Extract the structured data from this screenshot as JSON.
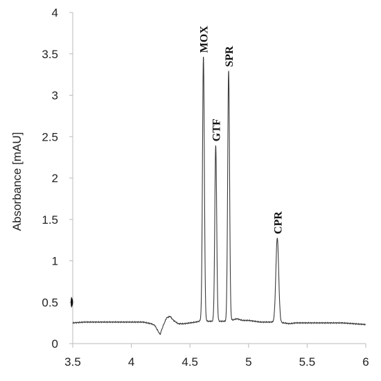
{
  "chart_data": {
    "type": "line",
    "title": "",
    "xlabel": "",
    "ylabel": "Absorbance [mAU]",
    "xlim": [
      3.5,
      6
    ],
    "ylim": [
      0,
      4
    ],
    "x_ticks": [
      "3.5",
      "4",
      "4.5",
      "5",
      "5.5",
      "6"
    ],
    "y_ticks": [
      "0",
      "0.5",
      "1",
      "1.5",
      "2",
      "2.5",
      "3",
      "3.5",
      "4"
    ],
    "grid": false,
    "line_color": "#3a3a3a",
    "baseline": [
      [
        3.5,
        0.25
      ],
      [
        3.6,
        0.26
      ],
      [
        3.7,
        0.26
      ],
      [
        3.8,
        0.26
      ],
      [
        3.9,
        0.26
      ],
      [
        4.0,
        0.26
      ],
      [
        4.1,
        0.26
      ],
      [
        4.17,
        0.24
      ],
      [
        4.2,
        0.22
      ],
      [
        4.22,
        0.17
      ],
      [
        4.245,
        0.11
      ],
      [
        4.27,
        0.21
      ],
      [
        4.3,
        0.31
      ],
      [
        4.33,
        0.33
      ],
      [
        4.36,
        0.28
      ],
      [
        4.4,
        0.24
      ],
      [
        4.45,
        0.24
      ],
      [
        4.5,
        0.25
      ],
      [
        4.55,
        0.26
      ],
      [
        4.58,
        0.27
      ],
      [
        4.6,
        0.3
      ],
      [
        4.65,
        0.27
      ],
      [
        4.7,
        0.27
      ],
      [
        4.75,
        0.27
      ],
      [
        4.8,
        0.27
      ],
      [
        4.85,
        0.28
      ],
      [
        4.9,
        0.3
      ],
      [
        4.95,
        0.28
      ],
      [
        5.0,
        0.28
      ],
      [
        5.05,
        0.27
      ],
      [
        5.1,
        0.26
      ],
      [
        5.15,
        0.26
      ],
      [
        5.2,
        0.26
      ],
      [
        5.3,
        0.25
      ],
      [
        5.35,
        0.24
      ],
      [
        5.4,
        0.25
      ],
      [
        5.5,
        0.25
      ],
      [
        5.6,
        0.25
      ],
      [
        5.7,
        0.25
      ],
      [
        5.8,
        0.25
      ],
      [
        5.9,
        0.24
      ],
      [
        6.0,
        0.23
      ]
    ],
    "peaks": [
      {
        "name": "MOX",
        "x": 4.615,
        "height": 3.47,
        "width": 0.008
      },
      {
        "name": "GTF",
        "x": 4.72,
        "height": 2.4,
        "width": 0.008
      },
      {
        "name": "SPR",
        "x": 4.83,
        "height": 3.3,
        "width": 0.008
      },
      {
        "name": "CPR",
        "x": 5.245,
        "height": 1.28,
        "width": 0.012
      }
    ]
  }
}
